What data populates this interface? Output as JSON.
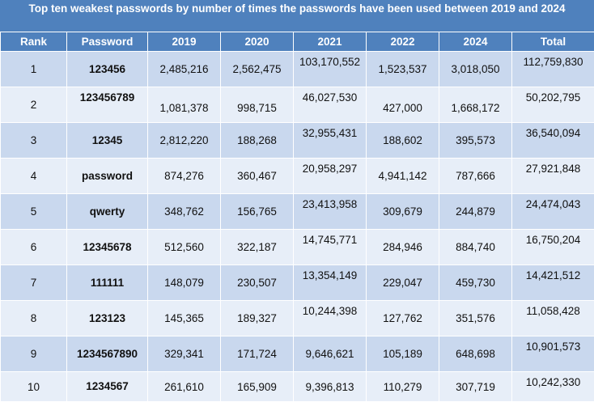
{
  "title": "Top ten weakest passwords by number of times the passwords have been used between 2019 and 2024",
  "headers": [
    "Rank",
    "Password",
    "2019",
    "2020",
    "2021",
    "2022",
    "2024",
    "Total"
  ],
  "rows": [
    {
      "rank": "1",
      "password": "123456",
      "y2019": "2,485,216",
      "y2020": "2,562,475",
      "y2021": "103,170,552",
      "y2022": "1,523,537",
      "y2024": "3,018,050",
      "total": "112,759,830"
    },
    {
      "rank": "2",
      "password": "123456789",
      "y2019": "1,081,378",
      "y2020": "998,715",
      "y2021": "46,027,530",
      "y2022": "427,000",
      "y2024": "1,668,172",
      "total": "50,202,795"
    },
    {
      "rank": "3",
      "password": "12345",
      "y2019": "2,812,220",
      "y2020": "188,268",
      "y2021": "32,955,431",
      "y2022": "188,602",
      "y2024": "395,573",
      "total": "36,540,094"
    },
    {
      "rank": "4",
      "password": "password",
      "y2019": "874,276",
      "y2020": "360,467",
      "y2021": "20,958,297",
      "y2022": "4,941,142",
      "y2024": "787,666",
      "total": "27,921,848"
    },
    {
      "rank": "5",
      "password": "qwerty",
      "y2019": "348,762",
      "y2020": "156,765",
      "y2021": "23,413,958",
      "y2022": "309,679",
      "y2024": "244,879",
      "total": "24,474,043"
    },
    {
      "rank": "6",
      "password": "12345678",
      "y2019": "512,560",
      "y2020": "322,187",
      "y2021": "14,745,771",
      "y2022": "284,946",
      "y2024": "884,740",
      "total": "16,750,204"
    },
    {
      "rank": "7",
      "password": "111111",
      "y2019": "148,079",
      "y2020": "230,507",
      "y2021": "13,354,149",
      "y2022": "229,047",
      "y2024": "459,730",
      "total": "14,421,512"
    },
    {
      "rank": "8",
      "password": "123123",
      "y2019": "145,365",
      "y2020": "189,327",
      "y2021": "10,244,398",
      "y2022": "127,762",
      "y2024": "351,576",
      "total": "11,058,428"
    },
    {
      "rank": "9",
      "password": "1234567890",
      "y2019": "329,341",
      "y2020": "171,724",
      "y2021": "9,646,621",
      "y2022": "105,189",
      "y2024": "648,698",
      "total": "10,901,573"
    },
    {
      "rank": "10",
      "password": "1234567",
      "y2019": "261,610",
      "y2020": "165,909",
      "y2021": "9,396,813",
      "y2022": "110,279",
      "y2024": "307,719",
      "total": "10,242,330"
    }
  ]
}
